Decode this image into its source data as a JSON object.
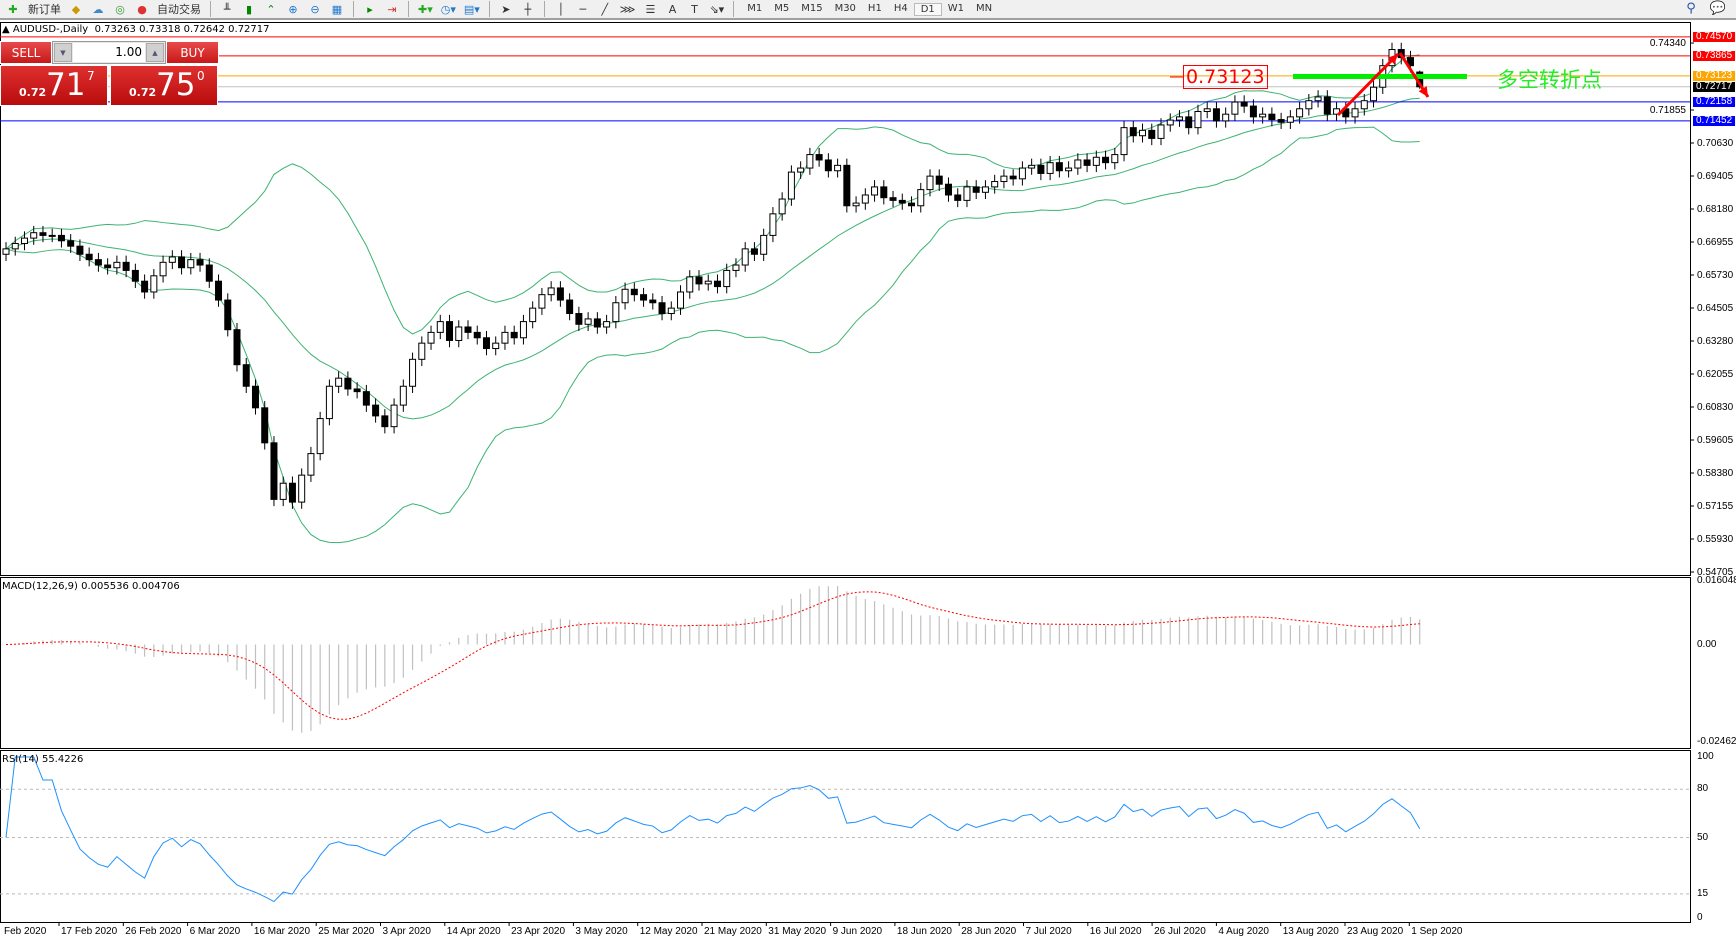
{
  "toolbar": {
    "new_order": "新订单",
    "auto_trading": "自动交易",
    "timeframes": [
      "M1",
      "M5",
      "M15",
      "M30",
      "H1",
      "H4",
      "D1",
      "W1",
      "MN"
    ],
    "active_timeframe": "D1",
    "tools": [
      "zoom-in",
      "zoom-out",
      "tile",
      "chart-shift",
      "autoscroll",
      "indicators",
      "periodicity",
      "templates",
      "cursor",
      "crosshair",
      "vertical-line",
      "horizontal-line",
      "trendline",
      "fibonacci",
      "text",
      "text-label",
      "arrows"
    ]
  },
  "header": {
    "symbol": "AUDUSD-,Daily",
    "ohlc": "0.73263 0.73318 0.72642 0.72717"
  },
  "trade_panel": {
    "sell": "SELL",
    "buy": "BUY",
    "lot": "1.00",
    "sell_small": "0.72",
    "sell_big": "71",
    "sell_sup": "7",
    "buy_small": "0.72",
    "buy_big": "75",
    "buy_sup": "0"
  },
  "annotations": {
    "level_badge": "0.73123",
    "note": "多空转折点"
  },
  "colors": {
    "resistance": "#ff0000",
    "pivot": "#ffa500",
    "support": "#0000ff",
    "bid": "#c0c0c0",
    "bands": "#3cb371",
    "rsi": "#1e90ff",
    "macd_signal": "#ff0000",
    "histogram": "#c0c0c0",
    "note": "#22ee22"
  },
  "levels": [
    {
      "price": 0.7457,
      "label": "0.74570",
      "color": "#ff0000",
      "bg": "#ff0000"
    },
    {
      "price": 0.73865,
      "label": "0.73865",
      "color": "#ff0000",
      "bg": "#ff0000"
    },
    {
      "price": 0.73123,
      "label": "0.73123",
      "color": "#ffa500",
      "bg": "#ffa500"
    },
    {
      "price": 0.72717,
      "label": "0.72717",
      "color": "#c0c0c0",
      "bg": "#000000"
    },
    {
      "price": 0.72158,
      "label": "0.72158",
      "color": "#0000ff",
      "bg": "#0000ff"
    },
    {
      "price": 0.71452,
      "label": "0.71452",
      "color": "#0000ff",
      "bg": "#0000ff"
    }
  ],
  "chart_data": {
    "type": "candlestick",
    "price_axis": [
      "0.74340",
      "0.71855",
      "0.70630",
      "0.69405",
      "0.68180",
      "0.66955",
      "0.65730",
      "0.64505",
      "0.63280",
      "0.62055",
      "0.60830",
      "0.59605",
      "0.58380",
      "0.57155",
      "0.55930",
      "0.54705"
    ],
    "ylim": [
      0.54705,
      0.7457
    ],
    "date_axis": [
      "Feb 2020",
      "17 Feb 2020",
      "26 Feb 2020",
      "6 Mar 2020",
      "16 Mar 2020",
      "25 Mar 2020",
      "3 Apr 2020",
      "14 Apr 2020",
      "23 Apr 2020",
      "3 May 2020",
      "12 May 2020",
      "21 May 2020",
      "31 May 2020",
      "9 Jun 2020",
      "18 Jun 2020",
      "28 Jun 2020",
      "7 Jul 2020",
      "16 Jul 2020",
      "26 Jul 2020",
      "4 Aug 2020",
      "13 Aug 2020",
      "23 Aug 2020",
      "1 Sep 2020"
    ],
    "closes": [
      0.667,
      0.669,
      0.671,
      0.673,
      0.672,
      0.672,
      0.67,
      0.668,
      0.665,
      0.663,
      0.661,
      0.66,
      0.662,
      0.659,
      0.655,
      0.651,
      0.657,
      0.662,
      0.664,
      0.66,
      0.663,
      0.661,
      0.655,
      0.648,
      0.637,
      0.624,
      0.616,
      0.608,
      0.595,
      0.574,
      0.58,
      0.573,
      0.583,
      0.591,
      0.604,
      0.616,
      0.619,
      0.615,
      0.614,
      0.609,
      0.605,
      0.601,
      0.609,
      0.616,
      0.626,
      0.632,
      0.636,
      0.64,
      0.633,
      0.638,
      0.636,
      0.634,
      0.63,
      0.632,
      0.636,
      0.634,
      0.64,
      0.645,
      0.65,
      0.6525,
      0.648,
      0.643,
      0.639,
      0.641,
      0.638,
      0.64,
      0.647,
      0.652,
      0.65,
      0.648,
      0.647,
      0.643,
      0.645,
      0.651,
      0.6566,
      0.654,
      0.655,
      0.653,
      0.659,
      0.661,
      0.667,
      0.665,
      0.672,
      0.68,
      0.6855,
      0.6955,
      0.697,
      0.702,
      0.7,
      0.696,
      0.698,
      0.683,
      0.684,
      0.687,
      0.69,
      0.686,
      0.685,
      0.684,
      0.683,
      0.689,
      0.694,
      0.691,
      0.687,
      0.685,
      0.69,
      0.688,
      0.69,
      0.692,
      0.694,
      0.693,
      0.697,
      0.698,
      0.695,
      0.699,
      0.696,
      0.697,
      0.7,
      0.698,
      0.701,
      0.699,
      0.702,
      0.712,
      0.709,
      0.711,
      0.708,
      0.713,
      0.7148,
      0.716,
      0.712,
      0.718,
      0.719,
      0.7145,
      0.717,
      0.7215,
      0.72,
      0.716,
      0.717,
      0.715,
      0.714,
      0.716,
      0.719,
      0.722,
      0.7234,
      0.717,
      0.719,
      0.716,
      0.719,
      0.722,
      0.727,
      0.735,
      0.741,
      0.738,
      0.735,
      0.72717
    ],
    "last_bar": {
      "open": 0.73263,
      "high": 0.73318,
      "low": 0.72642,
      "close": 0.72717
    },
    "bollinger": {
      "period": 20,
      "deviation": 2
    },
    "macd": {
      "label": "MACD(12,26,9) 0.005536 0.004706",
      "axis": [
        "0.016048",
        "0.00",
        "-0.024625"
      ],
      "ylim": [
        -0.024625,
        0.016048
      ]
    },
    "rsi": {
      "label": "RSI(14) 55.4226",
      "axis": [
        "100",
        "80",
        "50",
        "15",
        "0"
      ],
      "levels": [
        80,
        50,
        15
      ]
    }
  }
}
